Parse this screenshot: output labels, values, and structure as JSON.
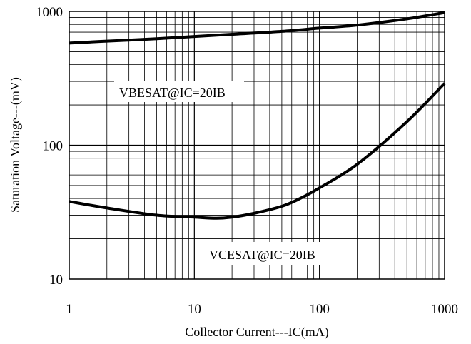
{
  "chart_data": {
    "type": "line",
    "x_scale": "log",
    "y_scale": "log",
    "xlim": [
      1,
      1000
    ],
    "ylim": [
      10,
      1000
    ],
    "grid": true,
    "xlabel": "Collector Current---IC(mA)",
    "ylabel": "Saturation Voltage---(mV)",
    "x_ticks": [
      1,
      10,
      100,
      1000
    ],
    "y_ticks": [
      10,
      100,
      1000
    ],
    "x_tick_labels": [
      "1",
      "10",
      "100",
      "1000"
    ],
    "y_tick_labels": [
      "10",
      "100",
      "1000"
    ],
    "annotations": [
      "VBESAT@IC=20IB",
      "VCESAT@IC=20IB"
    ],
    "series": [
      {
        "values": [
          {
            "x": 1,
            "y": 580
          },
          {
            "x": 2,
            "y": 600
          },
          {
            "x": 5,
            "y": 625
          },
          {
            "x": 10,
            "y": 650
          },
          {
            "x": 20,
            "y": 675
          },
          {
            "x": 50,
            "y": 710
          },
          {
            "x": 100,
            "y": 750
          },
          {
            "x": 200,
            "y": 790
          },
          {
            "x": 500,
            "y": 880
          },
          {
            "x": 1000,
            "y": 980
          }
        ]
      },
      {
        "values": [
          {
            "x": 1,
            "y": 38
          },
          {
            "x": 2,
            "y": 34
          },
          {
            "x": 5,
            "y": 30
          },
          {
            "x": 10,
            "y": 29
          },
          {
            "x": 15,
            "y": 28.5
          },
          {
            "x": 20,
            "y": 29
          },
          {
            "x": 30,
            "y": 31
          },
          {
            "x": 50,
            "y": 35
          },
          {
            "x": 70,
            "y": 40
          },
          {
            "x": 100,
            "y": 48
          },
          {
            "x": 200,
            "y": 72
          },
          {
            "x": 500,
            "y": 150
          },
          {
            "x": 1000,
            "y": 290
          }
        ]
      }
    ]
  }
}
